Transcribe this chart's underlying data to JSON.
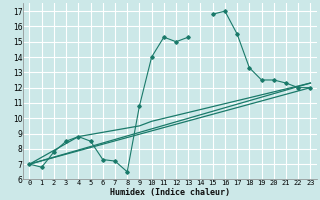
{
  "xlabel": "Humidex (Indice chaleur)",
  "bg_color": "#cce8e8",
  "grid_color": "#ffffff",
  "line_color": "#1a7a6a",
  "xlim": [
    -0.5,
    23.5
  ],
  "ylim": [
    6,
    17.5
  ],
  "xticks": [
    0,
    1,
    2,
    3,
    4,
    5,
    6,
    7,
    8,
    9,
    10,
    11,
    12,
    13,
    14,
    15,
    16,
    17,
    18,
    19,
    20,
    21,
    22,
    23
  ],
  "yticks": [
    6,
    7,
    8,
    9,
    10,
    11,
    12,
    13,
    14,
    15,
    16,
    17
  ],
  "line1_x": [
    0,
    1,
    2,
    3,
    4,
    5,
    6,
    7,
    8,
    9,
    10,
    11,
    12,
    13,
    14,
    15,
    16,
    17,
    18,
    19,
    20,
    21,
    22,
    23
  ],
  "line1_y": [
    7.0,
    6.8,
    7.8,
    8.5,
    8.8,
    8.5,
    7.3,
    7.2,
    6.5,
    10.8,
    14.0,
    15.3,
    15.0,
    15.3,
    null,
    16.8,
    17.0,
    15.5,
    13.3,
    12.5,
    12.5,
    12.3,
    12.0,
    12.0
  ],
  "line2_x": [
    0,
    4,
    9,
    10,
    23
  ],
  "line2_y": [
    7.0,
    8.8,
    9.5,
    9.8,
    12.3
  ],
  "line3_x": [
    0,
    23
  ],
  "line3_y": [
    7.0,
    12.3
  ],
  "line4_x": [
    0,
    23
  ],
  "line4_y": [
    7.0,
    12.0
  ]
}
